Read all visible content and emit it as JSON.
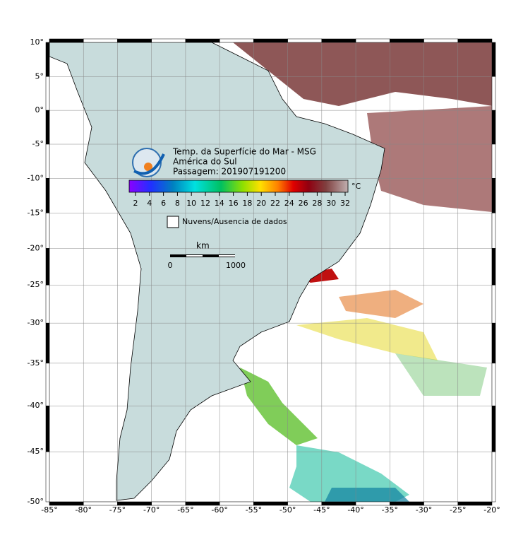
{
  "map": {
    "title": "Temp. da Superfície do Mar - MSG",
    "region": "América do Sul",
    "pass": "Passagem: 201907191200",
    "lon_ticks": [
      {
        "value": -85,
        "label": "-85°"
      },
      {
        "value": -80,
        "label": "-80°"
      },
      {
        "value": -75,
        "label": "-75°"
      },
      {
        "value": -70,
        "label": "-70°"
      },
      {
        "value": -65,
        "label": "-65°"
      },
      {
        "value": -60,
        "label": "-60°"
      },
      {
        "value": -55,
        "label": "-55°"
      },
      {
        "value": -50,
        "label": "-50°"
      },
      {
        "value": -45,
        "label": "-45°"
      },
      {
        "value": -40,
        "label": "-40°"
      },
      {
        "value": -35,
        "label": "-35°"
      },
      {
        "value": -30,
        "label": "-30°"
      },
      {
        "value": -25,
        "label": "-25°"
      },
      {
        "value": -20,
        "label": "-20°"
      }
    ],
    "lat_ticks": [
      {
        "value": 10,
        "label": "10°"
      },
      {
        "value": 5,
        "label": "5°"
      },
      {
        "value": 0,
        "label": "0°"
      },
      {
        "value": -5,
        "label": "-5°"
      },
      {
        "value": -10,
        "label": "-10°"
      },
      {
        "value": -15,
        "label": "-15°"
      },
      {
        "value": -20,
        "label": "-20°"
      },
      {
        "value": -25,
        "label": "-25°"
      },
      {
        "value": -30,
        "label": "-30°"
      },
      {
        "value": -35,
        "label": "-35°"
      },
      {
        "value": -40,
        "label": "-40°"
      },
      {
        "value": -45,
        "label": "-45°"
      },
      {
        "value": -50,
        "label": "-50°"
      }
    ],
    "colorbar": {
      "ticks": [
        2,
        4,
        6,
        8,
        10,
        12,
        14,
        16,
        18,
        20,
        22,
        24,
        26,
        28,
        30,
        32
      ],
      "unit": "°C"
    },
    "legend": "Nuvens/Ausencia de dados",
    "scalebar": {
      "unit": "km",
      "start": 0,
      "end": 1000
    }
  }
}
